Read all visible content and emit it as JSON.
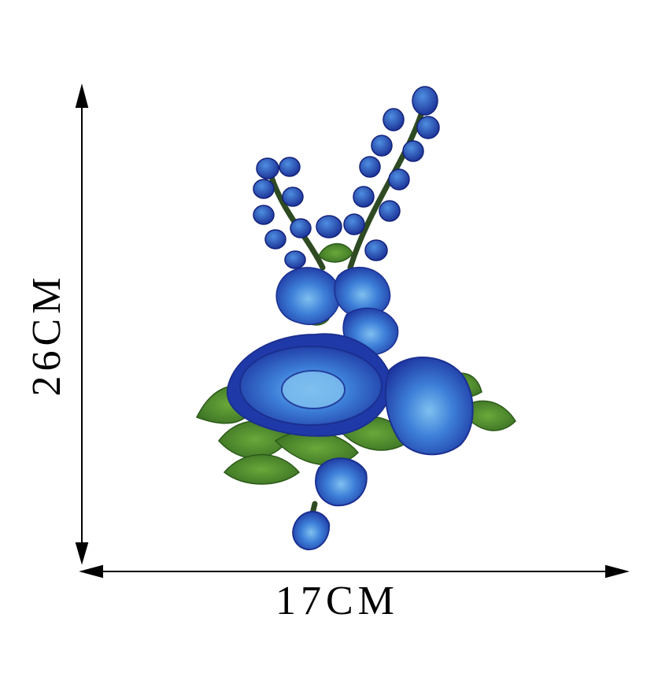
{
  "dimensions": {
    "width_label": "17CM",
    "height_label": "26CM"
  },
  "colors": {
    "petal_dark": "#1f3aa8",
    "petal_mid": "#2f6cd0",
    "petal_light": "#5aa2e6",
    "leaf_green": "#4e8a2c",
    "stem_green": "#2e4a22",
    "arrow": "#000000"
  }
}
